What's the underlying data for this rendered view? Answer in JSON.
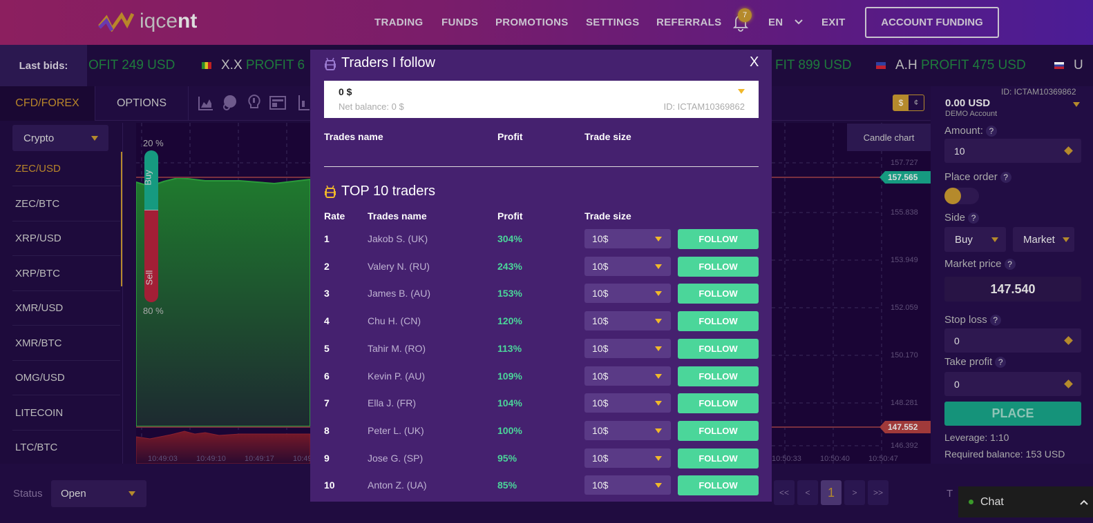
{
  "header": {
    "logo_text_light": "iqce",
    "logo_text_bold": "nt",
    "nav": [
      "TRADING",
      "FUNDS",
      "PROMOTIONS",
      "SETTINGS",
      "REFERRALS"
    ],
    "notification_count": "7",
    "language": "EN",
    "exit": "EXIT",
    "account_funding": "ACCOUNT FUNDING"
  },
  "ticker": {
    "label": "Last bids:",
    "items": [
      {
        "name": "",
        "profit": "OFIT 249 USD"
      },
      {
        "name": "X.X",
        "profit": "PROFIT 6"
      },
      {
        "name": "",
        "profit": "FIT 899 USD"
      },
      {
        "name": "A.H",
        "profit": "PROFIT 475 USD"
      },
      {
        "name": "U",
        "profit": ""
      }
    ]
  },
  "tabs": {
    "cfd": "CFD/FOREX",
    "options": "OPTIONS",
    "currency_usd": "$",
    "currency_cent": "¢"
  },
  "sidebar": {
    "category": "Crypto",
    "pairs": [
      "ZEC/USD",
      "ZEC/BTC",
      "XRP/USD",
      "XRP/BTC",
      "XMR/USD",
      "XMR/BTC",
      "OMG/USD",
      "LITECOIN",
      "LTC/BTC"
    ],
    "active": "ZEC/USD"
  },
  "chart": {
    "candle_chart": "Candle chart",
    "buy_pct": "20 %",
    "sell_pct": "80 %",
    "buy": "Buy",
    "sell": "Sell",
    "y_ticks": [
      "157.727",
      "155.838",
      "153.949",
      "152.059",
      "150.170",
      "148.281",
      "146.392"
    ],
    "ask_label": "157.565",
    "bid_label": "147.552",
    "x_ticks_left": [
      "10:49:03",
      "10:49:10",
      "10:49:17",
      "10:49"
    ],
    "x_ticks_right": [
      "10:50:33",
      "10:50:40",
      "10:50:47"
    ],
    "colors": {
      "buy": "#169a80",
      "sell": "#a31f36"
    }
  },
  "account": {
    "id": "ID: ICTAM10369862",
    "balance": "0.00 USD",
    "type": "DEMO Account"
  },
  "order": {
    "amount_label": "Amount:",
    "amount": "10",
    "place_order_label": "Place order",
    "side_label": "Side",
    "side": "Buy",
    "order_type": "Market",
    "market_price_label": "Market price",
    "market_price": "147.540",
    "stop_loss_label": "Stop loss",
    "stop_loss": "0",
    "take_profit_label": "Take profit",
    "take_profit": "0",
    "place": "PLACE",
    "leverage": "Leverage: 1:10",
    "required_balance": "Required balance: 153 USD",
    "help": "?"
  },
  "bottom": {
    "status_label": "Status",
    "status": "Open",
    "pagination": [
      "<<",
      "<",
      "1",
      ">",
      ">>"
    ],
    "chat": "Chat",
    "partial": "T"
  },
  "modal": {
    "title": "Traders I follow",
    "close": "X",
    "balance": "0 $",
    "net_balance": "Net balance: 0 $",
    "id": "ID: ICTAM10369862",
    "follow_headers": {
      "name": "Trades name",
      "profit": "Profit",
      "size": "Trade size"
    },
    "top_title": "TOP 10 traders",
    "top_headers": {
      "rate": "Rate",
      "name": "Trades name",
      "profit": "Profit",
      "size": "Trade size"
    },
    "follow_label": "FOLLOW",
    "traders": [
      {
        "rate": "1",
        "name": "Jakob S. (UK)",
        "profit": "304%",
        "size": "10$"
      },
      {
        "rate": "2",
        "name": "Valery N. (RU)",
        "profit": "243%",
        "size": "10$"
      },
      {
        "rate": "3",
        "name": "James B. (AU)",
        "profit": "153%",
        "size": "10$"
      },
      {
        "rate": "4",
        "name": "Chu H. (CN)",
        "profit": "120%",
        "size": "10$"
      },
      {
        "rate": "5",
        "name": "Tahir M. (RO)",
        "profit": "113%",
        "size": "10$"
      },
      {
        "rate": "6",
        "name": "Kevin P. (AU)",
        "profit": "109%",
        "size": "10$"
      },
      {
        "rate": "7",
        "name": "Ella J. (FR)",
        "profit": "104%",
        "size": "10$"
      },
      {
        "rate": "8",
        "name": "Peter L. (UK)",
        "profit": "100%",
        "size": "10$"
      },
      {
        "rate": "9",
        "name": "Jose G. (SP)",
        "profit": "95%",
        "size": "10$"
      },
      {
        "rate": "10",
        "name": "Anton Z. (UA)",
        "profit": "85%",
        "size": "10$"
      }
    ]
  }
}
